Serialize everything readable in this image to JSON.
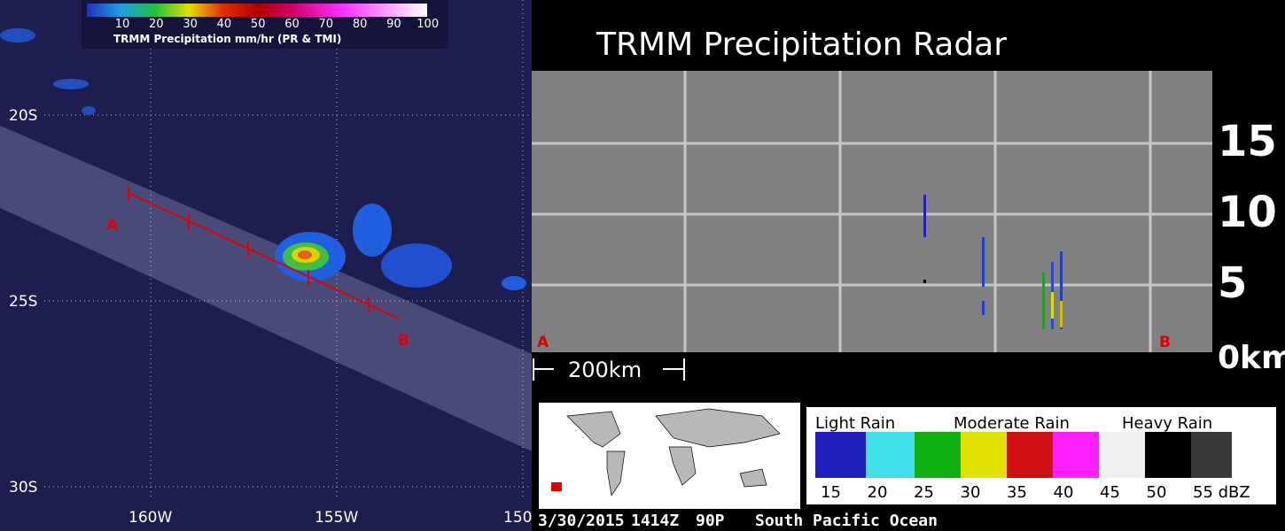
{
  "map": {
    "colorbar": {
      "ticks": [
        "10",
        "20",
        "30",
        "40",
        "50",
        "60",
        "70",
        "80",
        "90",
        "100"
      ],
      "label": "TRMM Precipitation mm/hr (PR & TMI)"
    },
    "lat_labels": [
      "20S",
      "25S",
      "30S"
    ],
    "lon_labels": [
      "160W",
      "155W",
      "150"
    ],
    "track": {
      "start": "A",
      "end": "B"
    }
  },
  "cross_section": {
    "title": "TRMM Precipitation Radar",
    "heights": [
      "15",
      "10",
      "5",
      "0km"
    ],
    "start": "A",
    "end": "B",
    "scale": "200km"
  },
  "legend": {
    "categories": [
      "Light Rain",
      "Moderate Rain",
      "Heavy Rain"
    ],
    "ticks": [
      "15",
      "20",
      "25",
      "30",
      "35",
      "40",
      "45",
      "50",
      "55 dBZ"
    ]
  },
  "footer": {
    "date": "3/30/2015",
    "time": "1414Z",
    "storm": "90P",
    "region": "South Pacific Ocean"
  }
}
